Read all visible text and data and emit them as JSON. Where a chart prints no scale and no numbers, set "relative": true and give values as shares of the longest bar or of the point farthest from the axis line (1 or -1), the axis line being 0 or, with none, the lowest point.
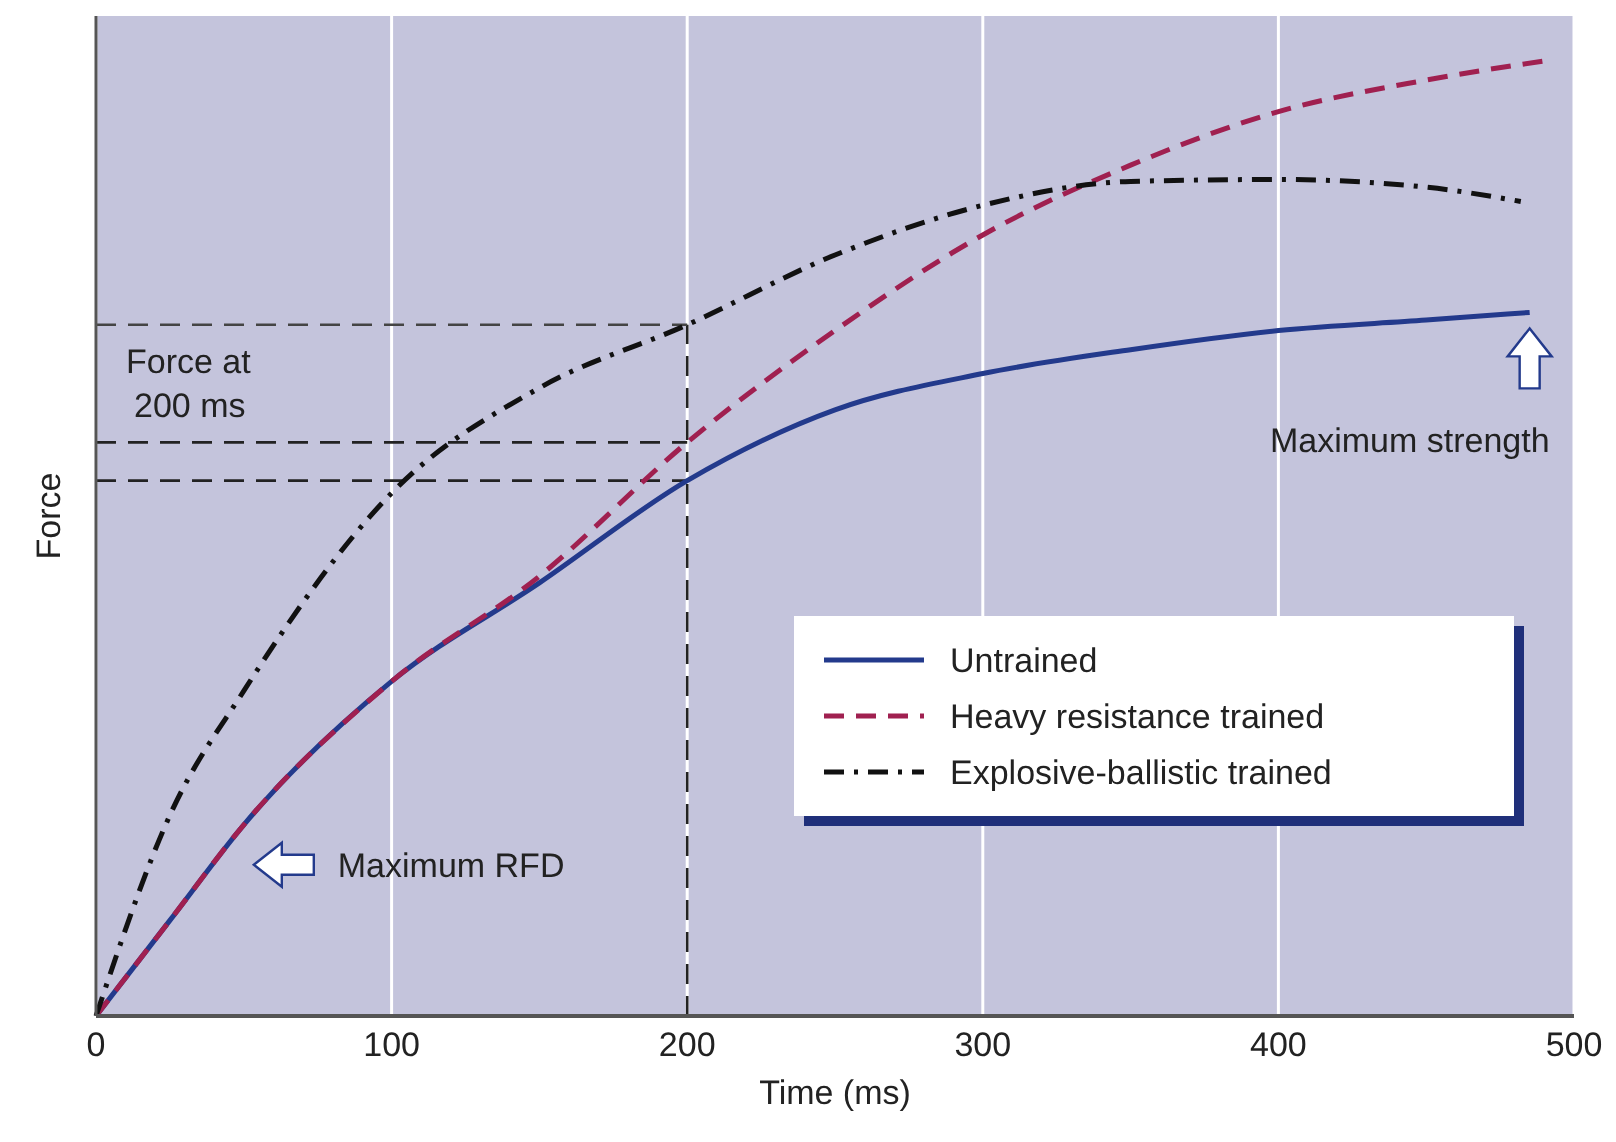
{
  "chart_data": {
    "type": "line",
    "xlabel": "Time (ms)",
    "ylabel": "Force",
    "relative": true,
    "x": [
      0,
      25,
      50,
      100,
      150,
      200,
      250,
      300,
      350,
      400,
      450,
      485
    ],
    "xlim": [
      0,
      500
    ],
    "xticks": [
      0,
      100,
      200,
      300,
      400,
      500
    ],
    "grid": "x",
    "legend": "bottom right",
    "tick_labels": "x",
    "series": [
      {
        "name": "Untrained",
        "color": "#233a8c",
        "line_style": "solid",
        "values": [
          0,
          0.1,
          0.2,
          0.35,
          0.453,
          0.56,
          0.634,
          0.672,
          0.697,
          0.717,
          0.728,
          0.736
        ]
      },
      {
        "name": "Heavy resistance trained",
        "color": "#a02050",
        "line_style": "dashed",
        "x": [
          0,
          25,
          50,
          100,
          150,
          200,
          250,
          300,
          350,
          400,
          450,
          492
        ],
        "values": [
          0,
          0.1,
          0.2,
          0.35,
          0.46,
          0.6,
          0.717,
          0.817,
          0.89,
          0.946,
          0.979,
          1
        ]
      },
      {
        "name": "Explosive-ballistic trained",
        "color": "#111111",
        "line_style": "dashdot",
        "x": [
          0,
          25,
          50,
          100,
          150,
          200,
          250,
          300,
          350,
          400,
          450,
          482
        ],
        "values": [
          0,
          0.21,
          0.34,
          0.547,
          0.657,
          0.723,
          0.796,
          0.848,
          0.873,
          0.875,
          0.867,
          0.852
        ]
      }
    ],
    "ref_lines": [
      {
        "axis": "x",
        "value": 200,
        "color": "#222222",
        "line_style": "dashed"
      },
      {
        "axis": "y",
        "value": 0.723,
        "color": "#444444",
        "line_style": "dashed"
      },
      {
        "axis": "y",
        "value": 0.6,
        "color": "#222222",
        "line_style": "dashed"
      },
      {
        "axis": "y",
        "value": 0.56,
        "color": "#222222",
        "line_style": "dashed"
      }
    ],
    "annotations": [
      "Force at\n200 ms",
      {
        "text": "Maximum RFD",
        "x": 50,
        "y": 0.2
      },
      "Maximum strength"
    ]
  }
}
